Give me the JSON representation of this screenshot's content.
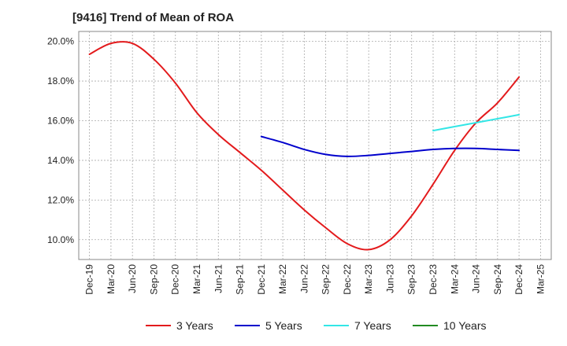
{
  "chart_data": {
    "type": "line",
    "title": "[9416]  Trend of Mean of ROA",
    "xlabel": "",
    "ylabel": "",
    "categories": [
      "Dec-19",
      "Mar-20",
      "Jun-20",
      "Sep-20",
      "Dec-20",
      "Mar-21",
      "Jun-21",
      "Sep-21",
      "Dec-21",
      "Mar-22",
      "Jun-22",
      "Sep-22",
      "Dec-22",
      "Mar-23",
      "Jun-23",
      "Sep-23",
      "Dec-23",
      "Mar-24",
      "Jun-24",
      "Sep-24",
      "Dec-24",
      "Mar-25"
    ],
    "y_ticks": [
      "10.0%",
      "12.0%",
      "14.0%",
      "16.0%",
      "18.0%",
      "20.0%"
    ],
    "ylim": [
      9.0,
      20.5
    ],
    "grid": true,
    "legend_position": "bottom",
    "series": [
      {
        "name": "3 Years",
        "color": "#e31a1c",
        "values": [
          19.35,
          19.9,
          19.9,
          19.1,
          17.9,
          16.4,
          15.3,
          14.4,
          13.5,
          12.5,
          11.5,
          10.6,
          9.8,
          9.5,
          10.0,
          11.2,
          12.8,
          14.5,
          15.9,
          16.9,
          18.2,
          null
        ]
      },
      {
        "name": "5 Years",
        "color": "#0000cc",
        "values": [
          null,
          null,
          null,
          null,
          null,
          null,
          null,
          null,
          15.2,
          14.9,
          14.55,
          14.3,
          14.2,
          14.25,
          14.35,
          14.45,
          14.55,
          14.6,
          14.6,
          14.55,
          14.5,
          null
        ]
      },
      {
        "name": "7 Years",
        "color": "#33e6e6",
        "values": [
          null,
          null,
          null,
          null,
          null,
          null,
          null,
          null,
          null,
          null,
          null,
          null,
          null,
          null,
          null,
          null,
          15.5,
          15.7,
          15.9,
          16.1,
          16.3,
          null
        ]
      },
      {
        "name": "10 Years",
        "color": "#228b22",
        "values": [
          null,
          null,
          null,
          null,
          null,
          null,
          null,
          null,
          null,
          null,
          null,
          null,
          null,
          null,
          null,
          null,
          null,
          null,
          null,
          null,
          null,
          null
        ]
      }
    ]
  }
}
